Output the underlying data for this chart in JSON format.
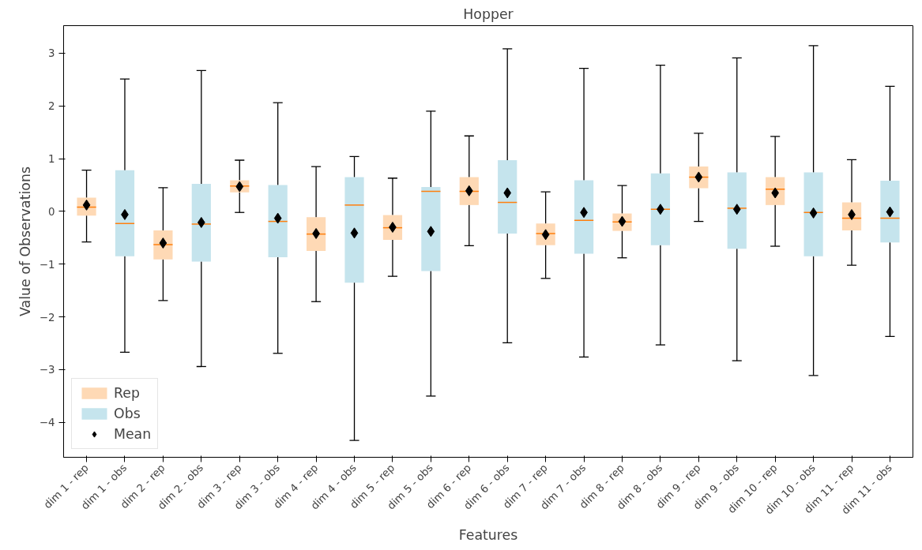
{
  "chart_data": {
    "type": "box",
    "title": "Hopper",
    "xlabel": "Features",
    "ylabel": "Value of Observations",
    "categories": [
      "dim 1 - rep",
      "dim 1 - obs",
      "dim 2 - rep",
      "dim 2 - obs",
      "dim 3 - rep",
      "dim 3 - obs",
      "dim 4 - rep",
      "dim 4 - obs",
      "dim 5 - rep",
      "dim 5 - obs",
      "dim 6 - rep",
      "dim 6 - obs",
      "dim 7 - rep",
      "dim 7 - obs",
      "dim 8 - rep",
      "dim 8 - obs",
      "dim 9 - rep",
      "dim 9 - obs",
      "dim 10 - rep",
      "dim 10 - obs",
      "dim 11 - rep",
      "dim 11 - obs"
    ],
    "ylim": [
      -4.66,
      3.52
    ],
    "yticks": [
      -4,
      -3,
      -2,
      -1,
      0,
      1,
      2,
      3
    ],
    "grid": false,
    "legend": "bottom left",
    "series": [
      {
        "name": "Rep",
        "color": "#fec996",
        "boxes": [
          {
            "low": -0.58,
            "q1": -0.08,
            "median": 0.08,
            "q3": 0.26,
            "high": 0.78
          },
          null,
          {
            "low": -1.69,
            "q1": -0.91,
            "median": -0.63,
            "q3": -0.36,
            "high": 0.45
          },
          null,
          {
            "low": -0.02,
            "q1": 0.36,
            "median": 0.48,
            "q3": 0.59,
            "high": 0.97
          },
          null,
          {
            "low": -1.71,
            "q1": -0.75,
            "median": -0.43,
            "q3": -0.11,
            "high": 0.85
          },
          null,
          {
            "low": -1.23,
            "q1": -0.54,
            "median": -0.31,
            "q3": -0.07,
            "high": 0.63
          },
          null,
          {
            "low": -0.65,
            "q1": 0.12,
            "median": 0.38,
            "q3": 0.65,
            "high": 1.43
          },
          null,
          {
            "low": -1.27,
            "q1": -0.64,
            "median": -0.42,
            "q3": -0.23,
            "high": 0.37
          },
          null,
          {
            "low": -0.88,
            "q1": -0.37,
            "median": -0.2,
            "q3": -0.04,
            "high": 0.49
          },
          null,
          {
            "low": -0.19,
            "q1": 0.44,
            "median": 0.65,
            "q3": 0.85,
            "high": 1.48
          },
          null,
          {
            "low": -0.66,
            "q1": 0.12,
            "median": 0.42,
            "q3": 0.65,
            "high": 1.42
          },
          null,
          {
            "low": -1.02,
            "q1": -0.36,
            "median": -0.13,
            "q3": 0.17,
            "high": 0.98
          },
          null
        ]
      },
      {
        "name": "Obs",
        "color": "#add8e6",
        "boxes": [
          null,
          {
            "low": -2.67,
            "q1": -0.85,
            "median": -0.23,
            "q3": 0.78,
            "high": 2.51
          },
          null,
          {
            "low": -2.94,
            "q1": -0.95,
            "median": -0.24,
            "q3": 0.52,
            "high": 2.67
          },
          null,
          {
            "low": -2.69,
            "q1": -0.87,
            "median": -0.19,
            "q3": 0.5,
            "high": 2.06
          },
          null,
          {
            "low": -4.34,
            "q1": -1.35,
            "median": 0.12,
            "q3": 0.65,
            "high": 1.04
          },
          null,
          {
            "low": -3.5,
            "q1": -1.13,
            "median": 0.38,
            "q3": 0.46,
            "high": 1.9
          },
          null,
          {
            "low": -2.49,
            "q1": -0.42,
            "median": 0.17,
            "q3": 0.97,
            "high": 3.08
          },
          null,
          {
            "low": -2.76,
            "q1": -0.8,
            "median": -0.17,
            "q3": 0.59,
            "high": 2.71
          },
          null,
          {
            "low": -2.53,
            "q1": -0.64,
            "median": 0.04,
            "q3": 0.72,
            "high": 2.77
          },
          null,
          {
            "low": -2.83,
            "q1": -0.71,
            "median": 0.06,
            "q3": 0.74,
            "high": 2.91
          },
          null,
          {
            "low": -3.11,
            "q1": -0.85,
            "median": -0.02,
            "q3": 0.74,
            "high": 3.14
          },
          null,
          {
            "low": -2.37,
            "q1": -0.59,
            "median": -0.13,
            "q3": 0.58,
            "high": 2.37
          }
        ]
      },
      {
        "name": "Mean",
        "type": "scatter",
        "marker": "diamond",
        "color": "#000000",
        "values": [
          0.12,
          -0.06,
          -0.6,
          -0.21,
          0.47,
          -0.13,
          -0.42,
          -0.41,
          -0.3,
          -0.38,
          0.39,
          0.35,
          -0.44,
          -0.02,
          -0.19,
          0.04,
          0.65,
          0.04,
          0.35,
          -0.03,
          -0.06,
          -0.01
        ]
      }
    ]
  }
}
